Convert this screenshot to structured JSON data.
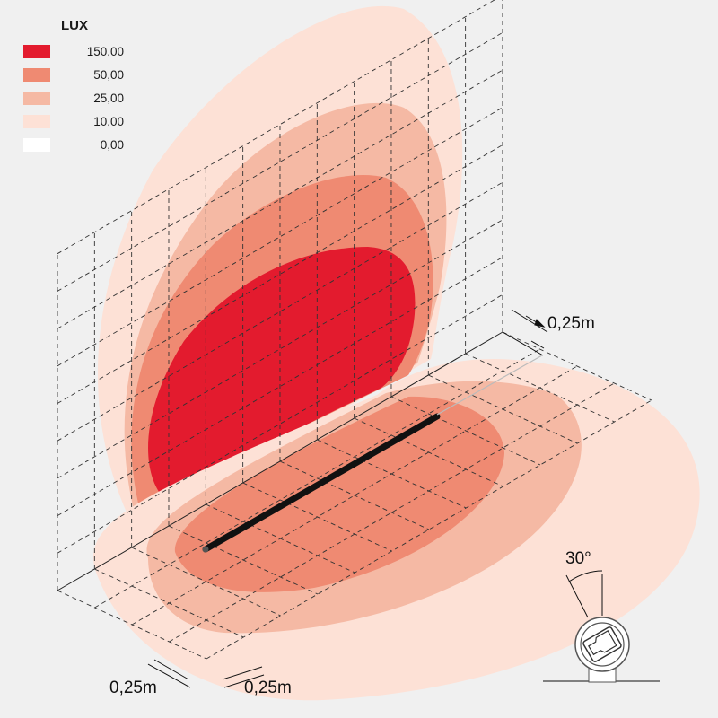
{
  "legend": {
    "title": "LUX",
    "items": [
      {
        "value": "150,00",
        "color": "#e31b2e"
      },
      {
        "value": "50,00",
        "color": "#ef8a72"
      },
      {
        "value": "25,00",
        "color": "#f5b9a4"
      },
      {
        "value": "10,00",
        "color": "#fde1d6"
      },
      {
        "value": "0,00",
        "color": "#ffffff"
      }
    ]
  },
  "dimensions": {
    "wall_grid": "0,25m",
    "floor_grid_depth": "0,25m",
    "floor_grid_width": "0,25m",
    "tilt_angle": "30°"
  },
  "fixture": {
    "color": "#111111"
  }
}
